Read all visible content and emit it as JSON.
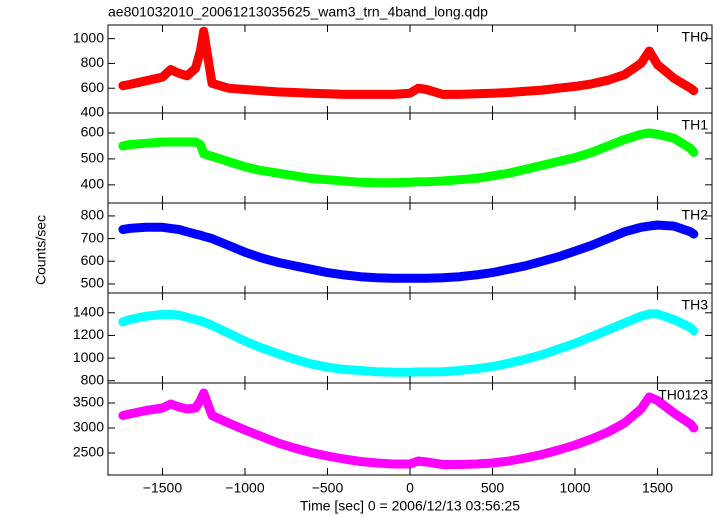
{
  "chart_data": [
    {
      "type": "line",
      "title": "ae801032010_20061213035625_wam3_trn_4band_long.qdp",
      "x": [
        -1740,
        -1700,
        -1600,
        -1500,
        -1450,
        -1400,
        -1350,
        -1300,
        -1270,
        -1250,
        -1200,
        -1100,
        -1000,
        -900,
        -800,
        -700,
        -600,
        -500,
        -400,
        -300,
        -200,
        -100,
        0,
        50,
        100,
        200,
        300,
        400,
        500,
        600,
        700,
        800,
        900,
        1000,
        1100,
        1200,
        1300,
        1400,
        1450,
        1500,
        1600,
        1700,
        1720
      ],
      "series": [
        {
          "name": "TH0",
          "color": "#ff0000",
          "values": [
            620,
            630,
            660,
            690,
            750,
            720,
            700,
            760,
            900,
            1060,
            640,
            600,
            590,
            580,
            570,
            565,
            560,
            555,
            550,
            550,
            550,
            550,
            560,
            600,
            590,
            550,
            550,
            555,
            560,
            565,
            575,
            585,
            600,
            615,
            635,
            665,
            710,
            800,
            900,
            790,
            680,
            600,
            580
          ]
        }
      ],
      "xlim": [
        -1830,
        1830
      ],
      "ylim": [
        400,
        1110
      ],
      "yticks": [
        400,
        600,
        800,
        1000
      ]
    },
    {
      "type": "line",
      "x": [
        -1740,
        -1700,
        -1600,
        -1500,
        -1450,
        -1400,
        -1350,
        -1300,
        -1270,
        -1250,
        -1200,
        -1100,
        -1000,
        -900,
        -800,
        -700,
        -600,
        -500,
        -400,
        -300,
        -200,
        -100,
        0,
        50,
        100,
        200,
        300,
        400,
        500,
        600,
        700,
        800,
        900,
        1000,
        1100,
        1200,
        1300,
        1400,
        1450,
        1500,
        1600,
        1700,
        1720
      ],
      "series": [
        {
          "name": "TH1",
          "color": "#00ff00",
          "values": [
            550,
            555,
            560,
            565,
            565,
            565,
            565,
            565,
            555,
            520,
            510,
            490,
            470,
            455,
            445,
            435,
            425,
            420,
            415,
            410,
            408,
            408,
            410,
            412,
            412,
            415,
            420,
            425,
            435,
            445,
            460,
            475,
            490,
            505,
            525,
            550,
            575,
            595,
            600,
            595,
            580,
            540,
            525
          ]
        }
      ],
      "xlim": [
        -1830,
        1830
      ],
      "ylim": [
        330,
        677
      ],
      "yticks": [
        400,
        500,
        600
      ]
    },
    {
      "type": "line",
      "y_label": "Counts/sec",
      "x": [
        -1740,
        -1700,
        -1600,
        -1500,
        -1450,
        -1400,
        -1350,
        -1300,
        -1270,
        -1250,
        -1200,
        -1100,
        -1000,
        -900,
        -800,
        -700,
        -600,
        -500,
        -400,
        -300,
        -200,
        -100,
        0,
        50,
        100,
        200,
        300,
        400,
        500,
        600,
        700,
        800,
        900,
        1000,
        1100,
        1200,
        1300,
        1400,
        1450,
        1500,
        1600,
        1700,
        1720
      ],
      "series": [
        {
          "name": "TH2",
          "color": "#0000ff",
          "values": [
            740,
            745,
            750,
            750,
            745,
            740,
            730,
            720,
            715,
            710,
            700,
            670,
            640,
            615,
            595,
            580,
            565,
            550,
            540,
            532,
            527,
            525,
            525,
            525,
            525,
            527,
            532,
            540,
            550,
            565,
            580,
            600,
            620,
            645,
            670,
            700,
            730,
            750,
            755,
            760,
            755,
            730,
            720
          ]
        }
      ],
      "xlim": [
        -1830,
        1830
      ],
      "ylim": [
        460,
        857
      ],
      "yticks": [
        500,
        600,
        700,
        800
      ]
    },
    {
      "type": "line",
      "x": [
        -1740,
        -1700,
        -1600,
        -1500,
        -1450,
        -1400,
        -1350,
        -1300,
        -1270,
        -1250,
        -1200,
        -1100,
        -1000,
        -900,
        -800,
        -700,
        -600,
        -500,
        -400,
        -300,
        -200,
        -100,
        0,
        50,
        100,
        200,
        300,
        400,
        500,
        600,
        700,
        800,
        900,
        1000,
        1100,
        1200,
        1300,
        1400,
        1450,
        1500,
        1600,
        1700,
        1720
      ],
      "series": [
        {
          "name": "TH3",
          "color": "#00ffff",
          "values": [
            1320,
            1340,
            1370,
            1385,
            1385,
            1380,
            1360,
            1340,
            1330,
            1320,
            1290,
            1220,
            1150,
            1090,
            1040,
            990,
            950,
            920,
            900,
            890,
            880,
            875,
            875,
            878,
            878,
            880,
            890,
            905,
            925,
            955,
            990,
            1030,
            1080,
            1130,
            1190,
            1250,
            1310,
            1370,
            1390,
            1390,
            1340,
            1270,
            1240
          ]
        }
      ],
      "xlim": [
        -1830,
        1830
      ],
      "ylim": [
        780,
        1575
      ],
      "yticks": [
        800,
        1000,
        1200,
        1400
      ]
    },
    {
      "type": "line",
      "x_label": "Time [sec] 0 = 2006/12/13 03:56:25",
      "x": [
        -1740,
        -1700,
        -1600,
        -1500,
        -1450,
        -1400,
        -1350,
        -1300,
        -1270,
        -1250,
        -1200,
        -1100,
        -1000,
        -900,
        -800,
        -700,
        -600,
        -500,
        -400,
        -300,
        -200,
        -100,
        0,
        50,
        100,
        200,
        300,
        400,
        500,
        600,
        700,
        800,
        900,
        1000,
        1100,
        1200,
        1300,
        1400,
        1450,
        1500,
        1600,
        1700,
        1720
      ],
      "series": [
        {
          "name": "TH0123",
          "color": "#ff00ff",
          "values": [
            3250,
            3280,
            3350,
            3400,
            3480,
            3420,
            3380,
            3400,
            3550,
            3700,
            3250,
            3100,
            2960,
            2830,
            2700,
            2600,
            2510,
            2440,
            2380,
            2330,
            2300,
            2280,
            2280,
            2340,
            2320,
            2270,
            2270,
            2280,
            2300,
            2340,
            2400,
            2470,
            2560,
            2660,
            2780,
            2920,
            3100,
            3380,
            3620,
            3550,
            3300,
            3080,
            3000
          ]
        }
      ],
      "xlim": [
        -1830,
        1830
      ],
      "ylim": [
        2060,
        3900
      ],
      "yticks": [
        2500,
        3000,
        3500
      ],
      "xticks": [
        {
          "value": -1500,
          "label": "−1500"
        },
        {
          "value": -1000,
          "label": "−1000"
        },
        {
          "value": -500,
          "label": "−500"
        },
        0,
        500,
        1000,
        1500
      ]
    }
  ]
}
